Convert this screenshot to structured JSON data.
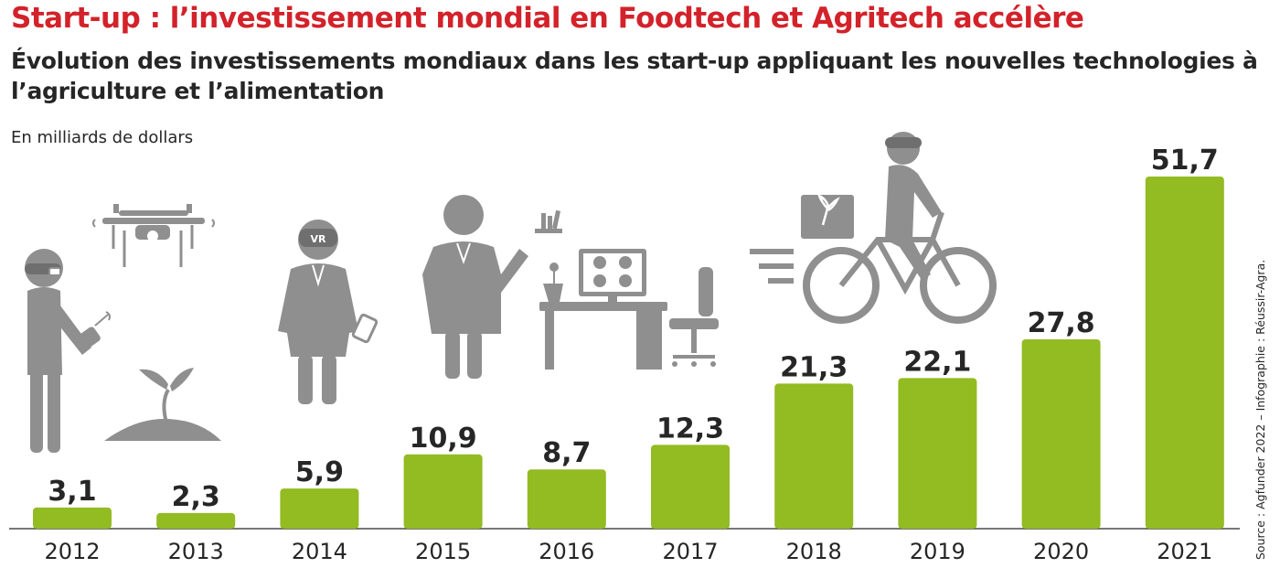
{
  "title": "Start-up : l’investissement mondial en Foodtech et Agritech accélère",
  "subtitle": "Évolution des investissements mondiaux dans les start-up appliquant les nouvelles technologies à l’agriculture et l’alimentation",
  "unit_label": "En milliards de dollars",
  "source": "Source : Agfunder 2022 – Infographie : Réussir-Agra.",
  "colors": {
    "bar": "#93bb22",
    "title": "#d3222a",
    "icon": "#8f8f8f",
    "text": "#262626"
  },
  "icons": [
    "drone-operator-icon",
    "drone-icon",
    "sprout-icon",
    "vr-headset-scientist-icon",
    "scientist-icon",
    "computer-desk-icon",
    "delivery-cyclist-icon"
  ],
  "chart_data": {
    "type": "bar",
    "categories": [
      "2012",
      "2013",
      "2014",
      "2015",
      "2016",
      "2017",
      "2018",
      "2019",
      "2020",
      "2021"
    ],
    "values": [
      3.1,
      2.3,
      5.9,
      10.9,
      8.7,
      12.3,
      21.3,
      22.1,
      27.8,
      51.7
    ],
    "value_labels": [
      "3,1",
      "2,3",
      "5,9",
      "10,9",
      "8,7",
      "12,3",
      "21,3",
      "22,1",
      "27,8",
      "51,7"
    ],
    "ylim": [
      0,
      51.7
    ],
    "grid": false,
    "legend": "none"
  }
}
